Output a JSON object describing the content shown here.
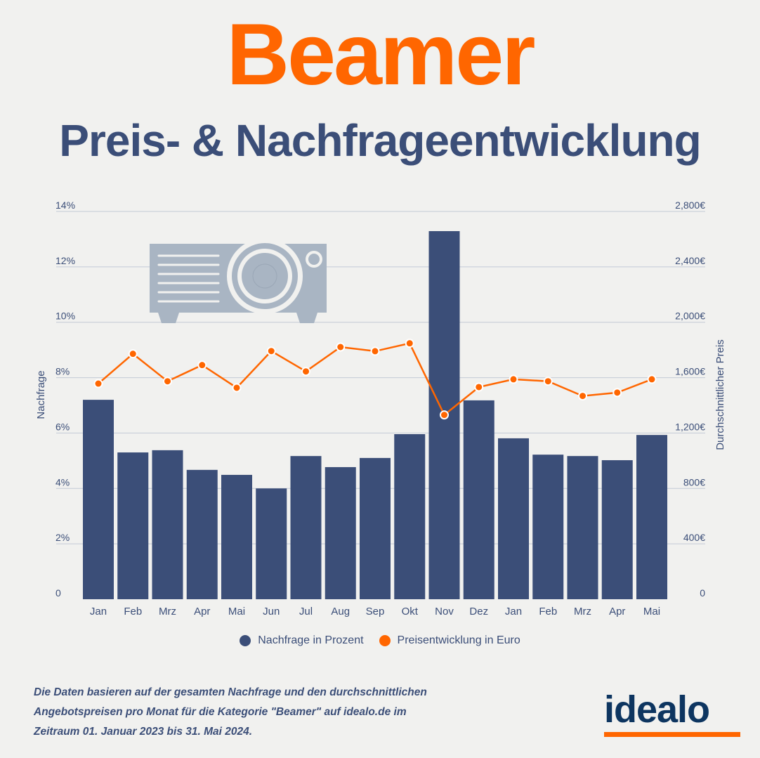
{
  "header": {
    "title": "Beamer",
    "subtitle": "Preis- & Nachfrageentwicklung"
  },
  "colors": {
    "bars": "#3b4e78",
    "line": "#ff6600",
    "icon": "#a9b5c3",
    "grid": "#c3cad6"
  },
  "chart_data": {
    "type": "bar+line",
    "categories": [
      "Jan",
      "Feb",
      "Mrz",
      "Apr",
      "Mai",
      "Jun",
      "Jul",
      "Aug",
      "Sep",
      "Okt",
      "Nov",
      "Dez",
      "Jan",
      "Feb",
      "Mrz",
      "Apr",
      "Mai"
    ],
    "series": [
      {
        "name": "Nachfrage in Prozent",
        "type": "bar",
        "axis": "left",
        "values": [
          7.2,
          5.3,
          5.38,
          4.67,
          4.49,
          4.0,
          5.17,
          4.77,
          5.1,
          5.96,
          13.29,
          7.18,
          5.81,
          5.22,
          5.17,
          5.02,
          5.93
        ]
      },
      {
        "name": "Preisentwicklung in Euro",
        "type": "line",
        "axis": "right",
        "values": [
          1557,
          1772,
          1574,
          1691,
          1527,
          1792,
          1645,
          1821,
          1791,
          1848,
          1331,
          1532,
          1588,
          1574,
          1468,
          1492,
          1588
        ]
      }
    ],
    "ylabel_left": "Nachfrage",
    "ylabel_right": "Durchschnittlicher Preis",
    "ylim_left": [
      0,
      14
    ],
    "ylim_right": [
      0,
      2800
    ],
    "yticks_left": [
      "0",
      "2%",
      "4%",
      "6%",
      "8%",
      "10%",
      "12%",
      "14%"
    ],
    "yticks_right": [
      "0",
      "400€",
      "800€",
      "1,200€",
      "1,600€",
      "2,000€",
      "2,400€",
      "2,800€"
    ],
    "grid": true,
    "legend": "bottom"
  },
  "legend": {
    "bars": "Nachfrage in Prozent",
    "line": "Preisentwicklung in Euro"
  },
  "footnote": "Die Daten basieren auf der gesamten Nachfrage und den durchschnittlichen Angebotspreisen pro Monat für die Kategorie \"Beamer\" auf idealo.de im Zeitraum 01. Januar 2023 bis 31. Mai 2024.",
  "logo": {
    "text": "idealo"
  }
}
